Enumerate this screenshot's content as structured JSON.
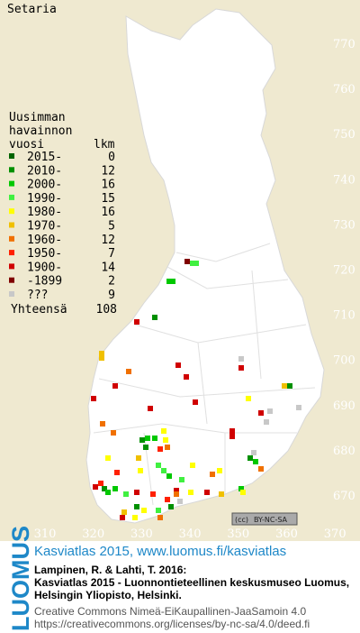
{
  "title": "Setaria",
  "legend": {
    "heading": [
      "Uusimman",
      "havainnon"
    ],
    "col_year": "vuosi",
    "col_count": "lkm",
    "entries": [
      {
        "label": "2015-",
        "count": 0,
        "color": "#006400"
      },
      {
        "label": "2010-",
        "count": 12,
        "color": "#009000"
      },
      {
        "label": "2000-",
        "count": 16,
        "color": "#00c800"
      },
      {
        "label": "1990-",
        "count": 15,
        "color": "#40f040"
      },
      {
        "label": "1980-",
        "count": 16,
        "color": "#ffff00"
      },
      {
        "label": "1970-",
        "count": 5,
        "color": "#f0c000"
      },
      {
        "label": "1960-",
        "count": 12,
        "color": "#f07000"
      },
      {
        "label": "1950-",
        "count": 7,
        "color": "#ff2000"
      },
      {
        "label": "1900-",
        "count": 14,
        "color": "#d00000"
      },
      {
        "label": "-1899",
        "count": 2,
        "color": "#800000"
      },
      {
        "label": "???",
        "count": 9,
        "color": "#c8c8c8"
      }
    ],
    "total_label": "Yhteensä",
    "total": 108
  },
  "grid": {
    "y_labels": [
      770,
      760,
      750,
      740,
      730,
      720,
      710,
      700,
      690,
      680,
      670
    ],
    "x_labels": [
      310,
      320,
      330,
      340,
      350,
      360,
      370
    ]
  },
  "license_badge": [
    "(cc)",
    "BY-NC-SA"
  ],
  "footer": {
    "logo": "LUOMUS",
    "headline": "Kasviatlas 2015, www.luomus.fi/kasviatlas",
    "citation": [
      "Lampinen, R. & Lahti, T. 2016:",
      "Kasviatlas 2015 - Luonnontieteellinen keskusmuseo Luomus,",
      "Helsingin Yliopisto, Helsinki."
    ],
    "license": [
      "Creative Commons Nimeä-EiKaupallinen-JaaSamoin 4.0",
      "https://creativecommons.org/licenses/by-nc-sa/4.0/deed.fi"
    ]
  }
}
